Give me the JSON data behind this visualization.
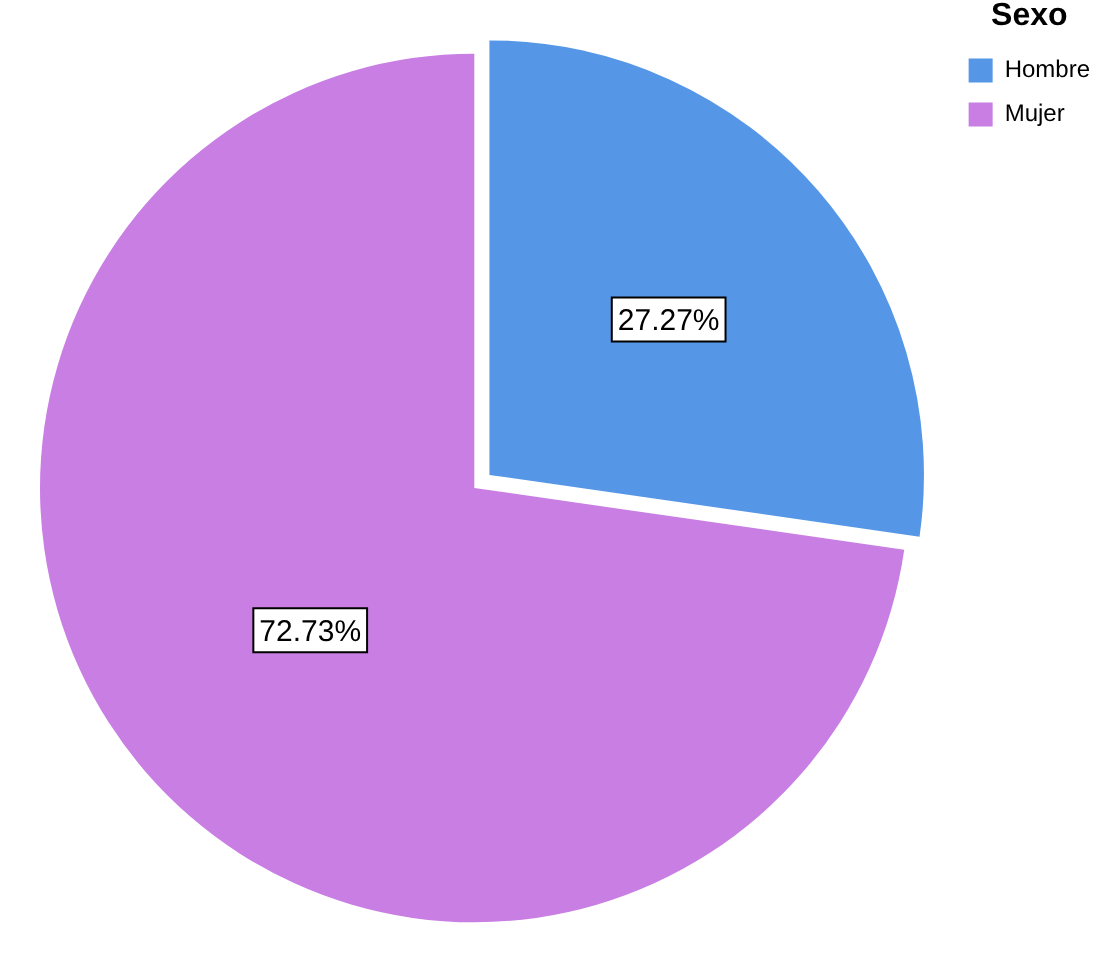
{
  "chart_data": {
    "type": "pie",
    "legend_title": "Sexo",
    "legend": "top right",
    "categories": [
      "Hombre",
      "Mujer"
    ],
    "values": [
      27.27,
      72.73
    ],
    "colors": [
      "#5597e6",
      "#c87ee3"
    ],
    "value_labels": [
      "27.27%",
      "72.73%"
    ]
  }
}
